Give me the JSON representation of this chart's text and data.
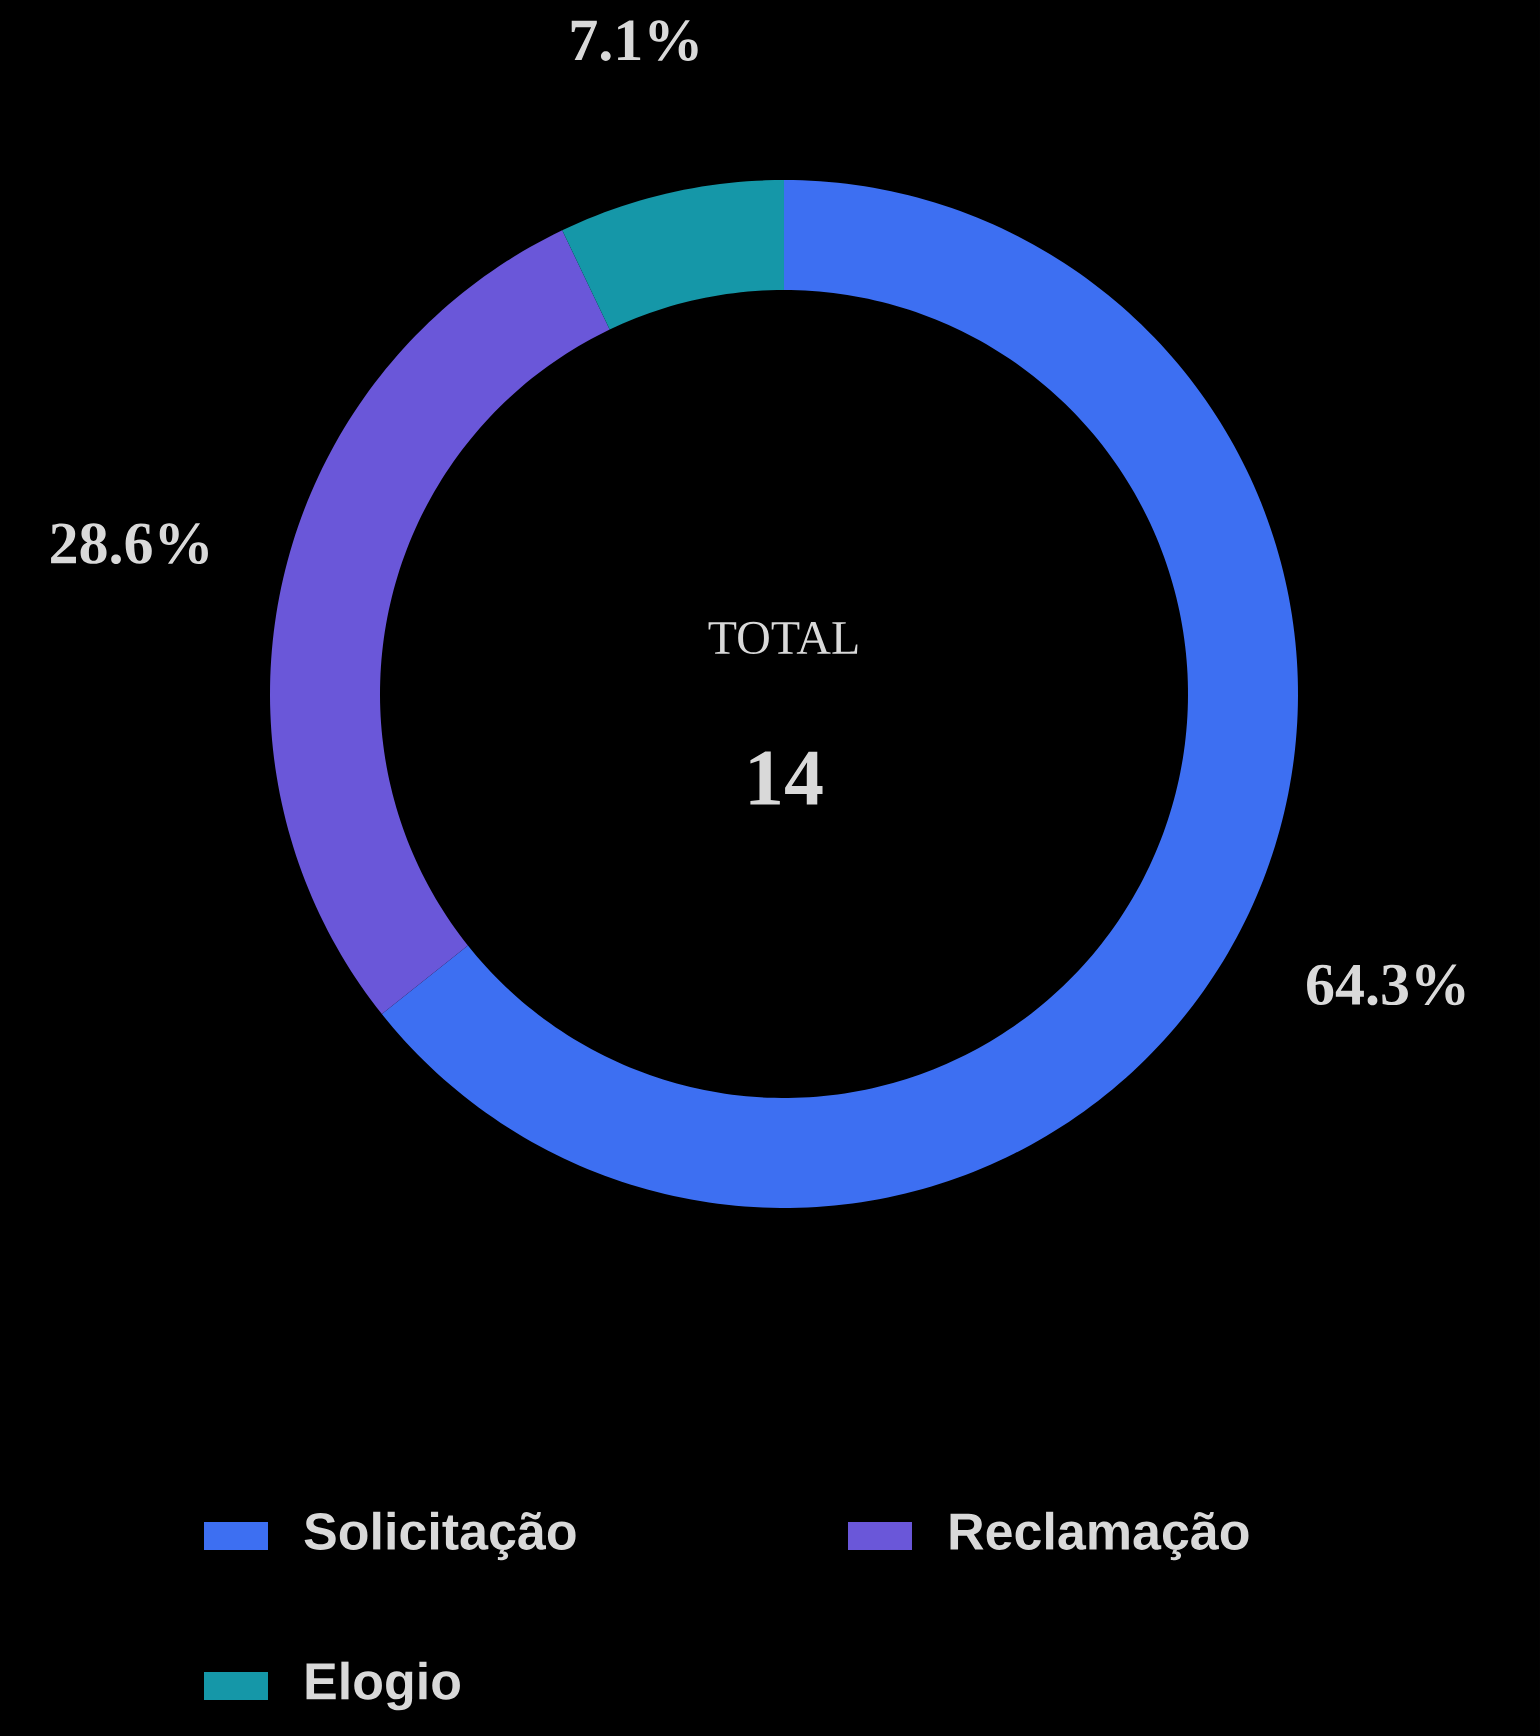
{
  "chart_data": {
    "type": "donut",
    "categories": [
      "Solicitação",
      "Reclamação",
      "Elogio"
    ],
    "values": [
      64.3,
      28.6,
      7.1
    ],
    "colors": [
      "#3d6ff2",
      "#6a57d9",
      "#1597a8"
    ],
    "value_labels": [
      "64.3%",
      "28.6%",
      "7.1%"
    ],
    "annotations": [
      "TOTAL",
      "14"
    ],
    "legend": "bottom"
  }
}
